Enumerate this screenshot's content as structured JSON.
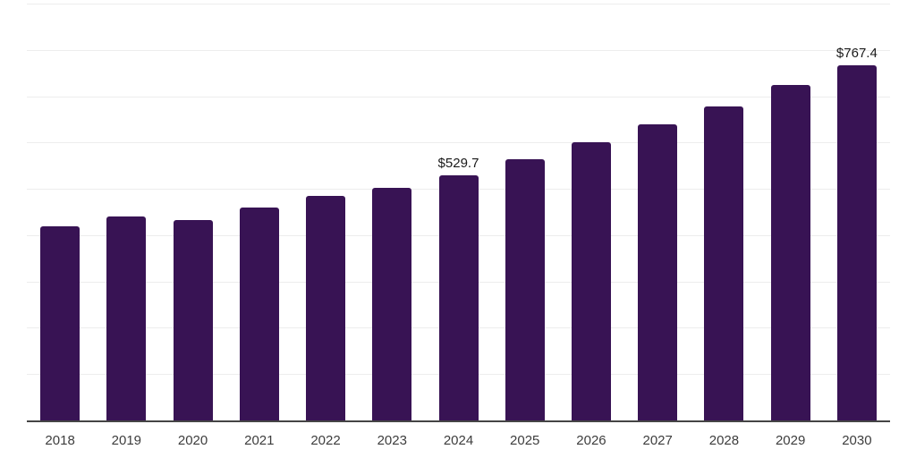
{
  "chart_data": {
    "type": "bar",
    "title": "",
    "xlabel": "",
    "ylabel": "",
    "categories": [
      "2018",
      "2019",
      "2020",
      "2021",
      "2022",
      "2023",
      "2024",
      "2025",
      "2026",
      "2027",
      "2028",
      "2029",
      "2030"
    ],
    "values": [
      418.5,
      439.8,
      433.2,
      459.1,
      484.8,
      502.1,
      529.7,
      564.9,
      600.6,
      639.3,
      677.9,
      724.2,
      767.4
    ],
    "data_labels": [
      "",
      "",
      "",
      "",
      "",
      "",
      "$529.7",
      "",
      "",
      "",
      "",
      "",
      "$767.4"
    ],
    "ylim": [
      0,
      900
    ],
    "grid_step": 100,
    "grid": true,
    "legend": "none",
    "y_axis_labels": "none",
    "colors": {
      "bar": "#381354",
      "grid": "#ededed",
      "axis": "#454545",
      "tick_label": "#3d3d3d",
      "data_label": "#1a1a1a",
      "background": "#ffffff"
    }
  }
}
